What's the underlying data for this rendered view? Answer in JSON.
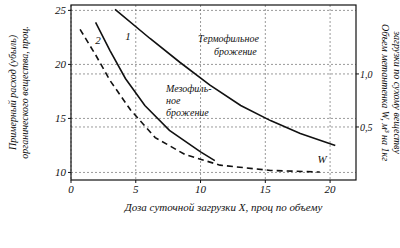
{
  "chart_data": {
    "type": "line",
    "xlabel": "Доза суточной загрузки X, проц по объему",
    "ylabel": [
      "Примерный расход (убыль)",
      "органического вещества, проц."
    ],
    "y2label": [
      "Объем метантенка W, м³ на 1кг",
      "загрузки по сухому веществу"
    ],
    "annotations": [
      "Термофильное",
      "брожение",
      "Мезофиль-",
      "ное",
      "брожение"
    ],
    "xlim": [
      0,
      22
    ],
    "xticks": [
      0,
      5,
      10,
      15,
      20
    ],
    "ylim": [
      9.3,
      25.5
    ],
    "yticks": [
      10,
      15,
      20,
      25
    ],
    "y2lim": [
      0,
      1.65
    ],
    "y2ticks": [
      {
        "value": 0.5,
        "label": "0,5"
      },
      {
        "value": 1.0,
        "label": "1,0"
      }
    ],
    "grid": true,
    "color": "#111111",
    "series": [
      {
        "name": "1",
        "color": "#111111",
        "line_style": "solid",
        "x": [
          3.4,
          6.1,
          8.4,
          10.7,
          13.1,
          15.4,
          17.7,
          20.4
        ],
        "values": [
          25.1,
          22.4,
          20.2,
          18.1,
          16.2,
          14.8,
          13.6,
          12.5
        ]
      },
      {
        "name": "2",
        "color": "#111111",
        "line_style": "solid",
        "x": [
          1.9,
          3.0,
          4.2,
          5.7,
          7.6,
          10.0,
          11.1
        ],
        "values": [
          23.9,
          21.3,
          18.7,
          16.2,
          13.9,
          11.9,
          11.1
        ]
      },
      {
        "name": "W",
        "color": "#111111",
        "line_style": "dashed",
        "axis": "y2",
        "x": [
          0.7,
          1.9,
          3.0,
          4.6,
          6.5,
          8.8,
          11.5,
          15.4,
          19.2
        ],
        "values": [
          1.42,
          1.18,
          0.94,
          0.66,
          0.4,
          0.24,
          0.14,
          0.09,
          0.075
        ]
      }
    ]
  }
}
